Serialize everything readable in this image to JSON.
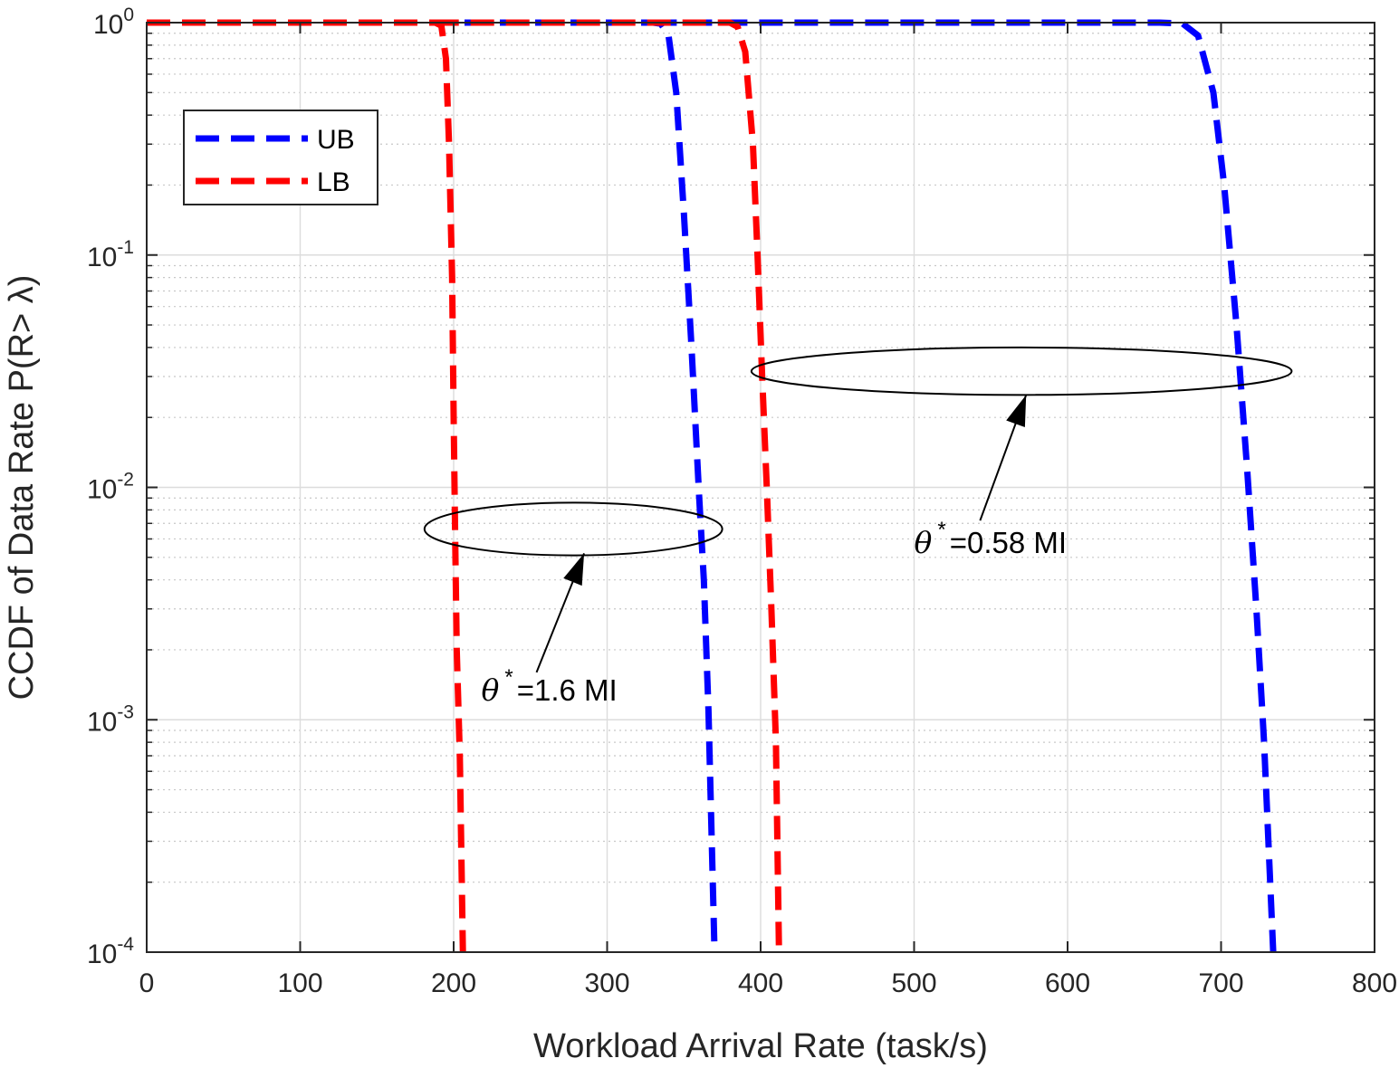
{
  "chart_data": {
    "type": "line",
    "xlabel": "Workload Arrival Rate (task/s)",
    "ylabel": "CCDF of Data Rate P(R>    λ)",
    "xlim": [
      0,
      800
    ],
    "ylim": [
      0.0001,
      1
    ],
    "yscale": "log",
    "grid": true,
    "minor_grid_y": true,
    "legend_position": "top-left",
    "x_ticks": [
      0,
      100,
      200,
      300,
      400,
      500,
      600,
      700,
      800
    ],
    "y_ticks": [
      {
        "value": 0.0001,
        "base": "10",
        "exp": "-4"
      },
      {
        "value": 0.001,
        "base": "10",
        "exp": "-3"
      },
      {
        "value": 0.01,
        "base": "10",
        "exp": "-2"
      },
      {
        "value": 0.1,
        "base": "10",
        "exp": "-1"
      },
      {
        "value": 1,
        "base": "10",
        "exp": "0"
      }
    ],
    "series": [
      {
        "name": "UB",
        "color": "#0000ff",
        "style": "dashed",
        "points": [
          [
            0,
            1
          ],
          [
            330,
            1
          ],
          [
            335,
            0.99
          ],
          [
            340,
            0.88
          ],
          [
            345,
            0.5
          ],
          [
            350,
            0.15
          ],
          [
            355,
            0.04
          ],
          [
            360,
            0.009
          ],
          [
            363,
            0.004
          ],
          [
            366,
            0.0011
          ],
          [
            370,
            0.0001
          ]
        ],
        "points2": [
          [
            330,
            1
          ],
          [
            660,
            1
          ],
          [
            675,
            0.99
          ],
          [
            685,
            0.88
          ],
          [
            695,
            0.5
          ],
          [
            702,
            0.2
          ],
          [
            710,
            0.05
          ],
          [
            717,
            0.012
          ],
          [
            723,
            0.003
          ],
          [
            728,
            0.0008
          ],
          [
            734,
            0.0001
          ]
        ]
      },
      {
        "name": "LB",
        "color": "#ff0000",
        "style": "dashed",
        "points": [
          [
            0,
            1
          ],
          [
            188,
            1
          ],
          [
            192,
            0.97
          ],
          [
            195,
            0.7
          ],
          [
            197,
            0.3
          ],
          [
            199,
            0.08
          ],
          [
            200,
            0.02
          ],
          [
            201,
            0.006
          ],
          [
            202,
            0.002
          ],
          [
            204,
            0.0007
          ],
          [
            206,
            0.0001
          ]
        ],
        "points2": [
          [
            188,
            1
          ],
          [
            380,
            1
          ],
          [
            385,
            0.96
          ],
          [
            390,
            0.75
          ],
          [
            395,
            0.3
          ],
          [
            398,
            0.1
          ],
          [
            401,
            0.03
          ],
          [
            404,
            0.01
          ],
          [
            407,
            0.003
          ],
          [
            410,
            0.0008
          ],
          [
            412,
            0.0001
          ]
        ]
      }
    ],
    "annotations": [
      {
        "symbol": "θ",
        "superscript": "*",
        "text": "=1.6 MI",
        "x": 218,
        "y": 0.00135
      },
      {
        "symbol": "θ",
        "superscript": "*",
        "text": "=0.58 MI",
        "x": 500,
        "y": 0.0058
      }
    ],
    "ellipses": [
      {
        "cx": 278,
        "cy": 0.0068,
        "rx": 97,
        "ry_low": 0.0051,
        "ry_high": 0.0086
      },
      {
        "cx": 570,
        "cy": 0.032,
        "rx": 176,
        "ry_low": 0.025,
        "ry_high": 0.04
      }
    ],
    "arrows": [
      {
        "from": [
          254,
          0.0016
        ],
        "to": [
          285,
          0.0052
        ]
      },
      {
        "from": [
          543,
          0.0072
        ],
        "to": [
          573,
          0.025
        ]
      }
    ]
  }
}
